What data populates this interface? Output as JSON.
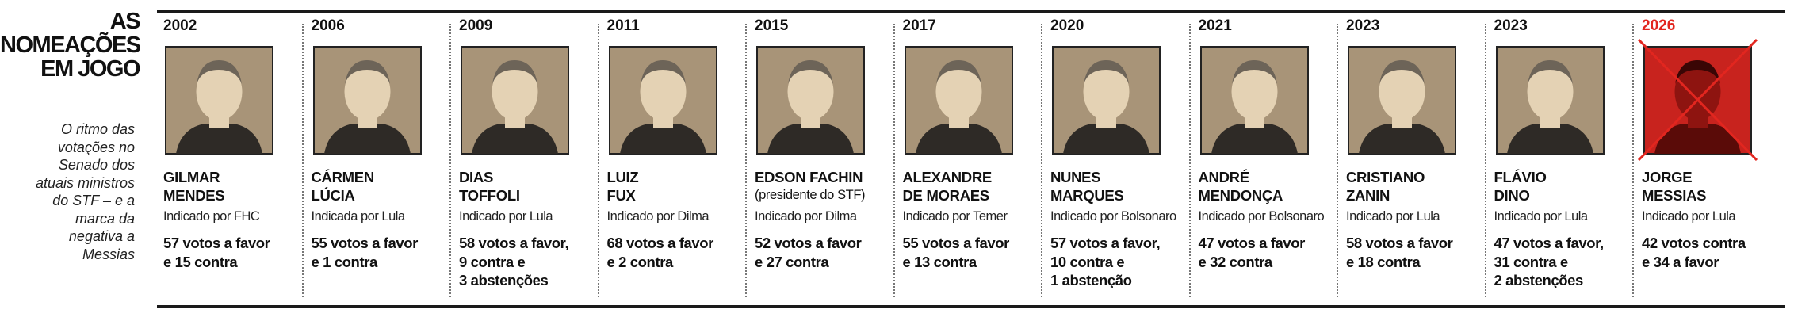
{
  "header": {
    "title": [
      "AS",
      "NOMEAÇÕES",
      "EM JOGO"
    ],
    "subtitle": [
      "O ritmo das",
      "votações no",
      "Senado dos",
      "atuais ministros",
      "do STF – e a",
      "marca da",
      "negativa a",
      "Messias"
    ]
  },
  "nominees": [
    {
      "year": "2002",
      "name": [
        "GILMAR",
        "MENDES"
      ],
      "indicated": "Indicado por FHC",
      "votes": [
        "57 votos a favor",
        "e 15 contra"
      ]
    },
    {
      "year": "2006",
      "name": [
        "CÁRMEN",
        "LÚCIA"
      ],
      "indicated": "Indicada por Lula",
      "votes": [
        "55 votos a favor",
        "e 1 contra"
      ]
    },
    {
      "year": "2009",
      "name": [
        "DIAS",
        "TOFFOLI"
      ],
      "indicated": "Indicado por Lula",
      "votes": [
        "58 votos a favor,",
        "9 contra e",
        "3 abstenções"
      ]
    },
    {
      "year": "2011",
      "name": [
        "LUIZ",
        "FUX"
      ],
      "indicated": "Indicado por Dilma",
      "votes": [
        "68 votos a favor",
        "e 2 contra"
      ]
    },
    {
      "year": "2015",
      "name": [
        "EDSON FACHIN"
      ],
      "note": "(presidente do STF)",
      "indicated": "Indicado por Dilma",
      "votes": [
        "52 votos a favor",
        "e 27 contra"
      ]
    },
    {
      "year": "2017",
      "name": [
        "ALEXANDRE",
        "DE MORAES"
      ],
      "indicated": "Indicado por Temer",
      "votes": [
        "55 votos a favor",
        "e 13 contra"
      ]
    },
    {
      "year": "2020",
      "name": [
        "NUNES",
        "MARQUES"
      ],
      "indicated": "Indicado por Bolsonaro",
      "votes": [
        "57 votos a favor,",
        "10 contra e",
        "1 abstenção"
      ]
    },
    {
      "year": "2021",
      "name": [
        "ANDRÉ",
        "MENDONÇA"
      ],
      "indicated": "Indicado por Bolsonaro",
      "votes": [
        "47 votos a favor",
        "e 32 contra"
      ]
    },
    {
      "year": "2023",
      "name": [
        "CRISTIANO",
        "ZANIN"
      ],
      "indicated": "Indicado por Lula",
      "votes": [
        "58 votos a favor",
        "e 18 contra"
      ]
    },
    {
      "year": "2023",
      "name": [
        "FLÁVIO",
        "DINO"
      ],
      "indicated": "Indicado por Lula",
      "votes": [
        "47 votos a favor,",
        "31 contra e",
        "2 abstenções"
      ]
    },
    {
      "year": "2026",
      "name": [
        "JORGE",
        "MESSIAS"
      ],
      "indicated": "Indicado por Lula",
      "votes": [
        "42 votos contra",
        "e 34 a favor"
      ],
      "rejected": true
    }
  ]
}
